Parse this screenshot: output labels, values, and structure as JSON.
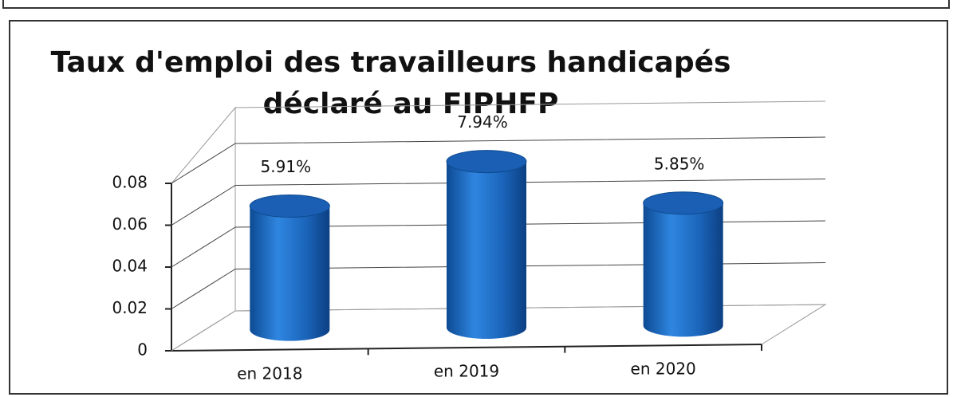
{
  "chart_data": {
    "type": "bar3d",
    "title": "Taux d'emploi des travailleurs handicapés",
    "subtitle": "déclaré au FIPHFP",
    "categories": [
      "en 2018",
      "en 2019",
      "en 2020"
    ],
    "values": [
      0.0591,
      0.0794,
      0.0585
    ],
    "value_labels": [
      "5.91%",
      "7.94%",
      "5.85%"
    ],
    "color": "#1f6fc5",
    "ylim": [
      0,
      0.08
    ],
    "yticks": [
      0,
      0.02,
      0.04,
      0.06,
      0.08
    ],
    "grid": true
  }
}
